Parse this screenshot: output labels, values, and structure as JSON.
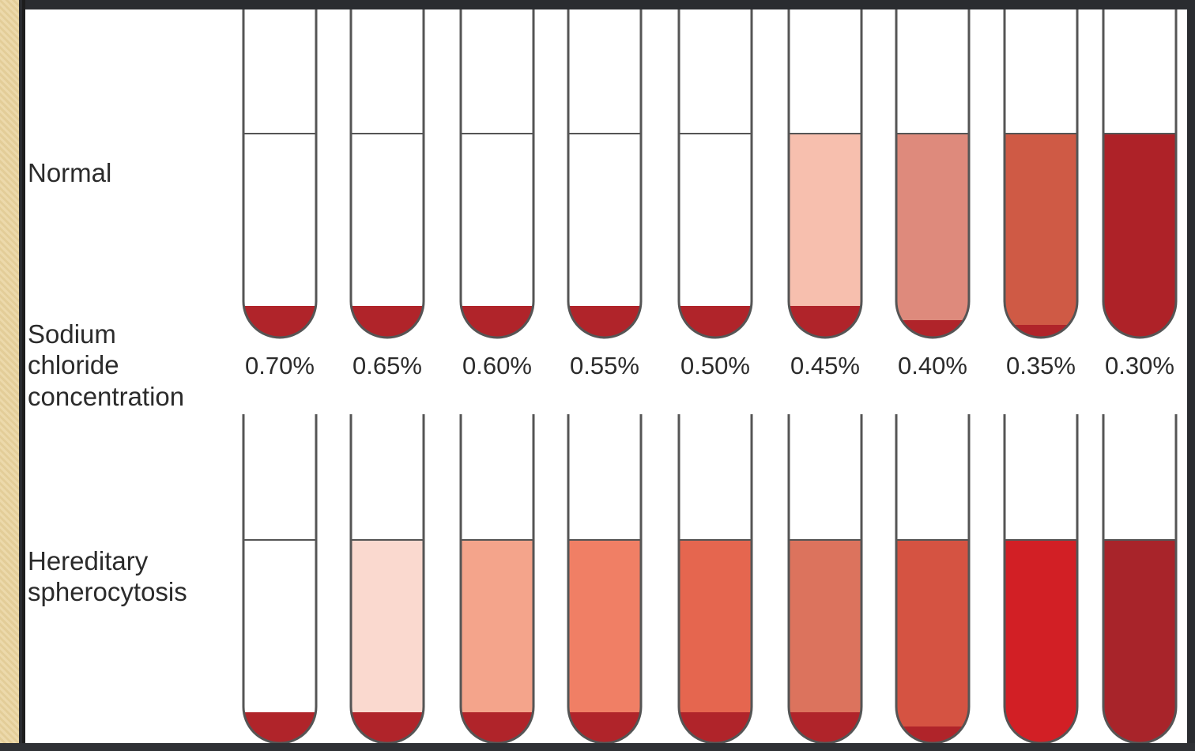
{
  "rows": {
    "normal": {
      "label": "Normal"
    },
    "hs": {
      "label_lines": [
        "Hereditary",
        "spherocytosis"
      ]
    }
  },
  "sodium_label_lines": [
    "Sodium",
    "chloride",
    "concentration"
  ],
  "concentrations": [
    "0.70%",
    "0.65%",
    "0.60%",
    "0.55%",
    "0.50%",
    "0.45%",
    "0.40%",
    "0.35%",
    "0.30%"
  ],
  "tubes": {
    "normal": [
      {
        "liquid": "#ffffff",
        "sediment": "full"
      },
      {
        "liquid": "#ffffff",
        "sediment": "full"
      },
      {
        "liquid": "#ffffff",
        "sediment": "full"
      },
      {
        "liquid": "#ffffff",
        "sediment": "full"
      },
      {
        "liquid": "#ffffff",
        "sediment": "full"
      },
      {
        "liquid": "#f7bfae",
        "sediment": "full"
      },
      {
        "liquid": "#de8a7c",
        "sediment": "small"
      },
      {
        "liquid": "#cf5a45",
        "sediment": "thin"
      },
      {
        "liquid": "#ae2228",
        "sediment": "none"
      }
    ],
    "hs": [
      {
        "liquid": "#ffffff",
        "sediment": "full"
      },
      {
        "liquid": "#fad9cf",
        "sediment": "full"
      },
      {
        "liquid": "#f4a48b",
        "sediment": "full"
      },
      {
        "liquid": "#f07f65",
        "sediment": "full"
      },
      {
        "liquid": "#e5664f",
        "sediment": "full"
      },
      {
        "liquid": "#dc735d",
        "sediment": "full"
      },
      {
        "liquid": "#d55342",
        "sediment": "small"
      },
      {
        "liquid": "#d21f25",
        "sediment": "none"
      },
      {
        "liquid": "#a8242a",
        "sediment": "none"
      }
    ]
  },
  "colors": {
    "sediment": "#b0242a",
    "tube_outline": "#555555",
    "text": "#2b2b2b"
  }
}
